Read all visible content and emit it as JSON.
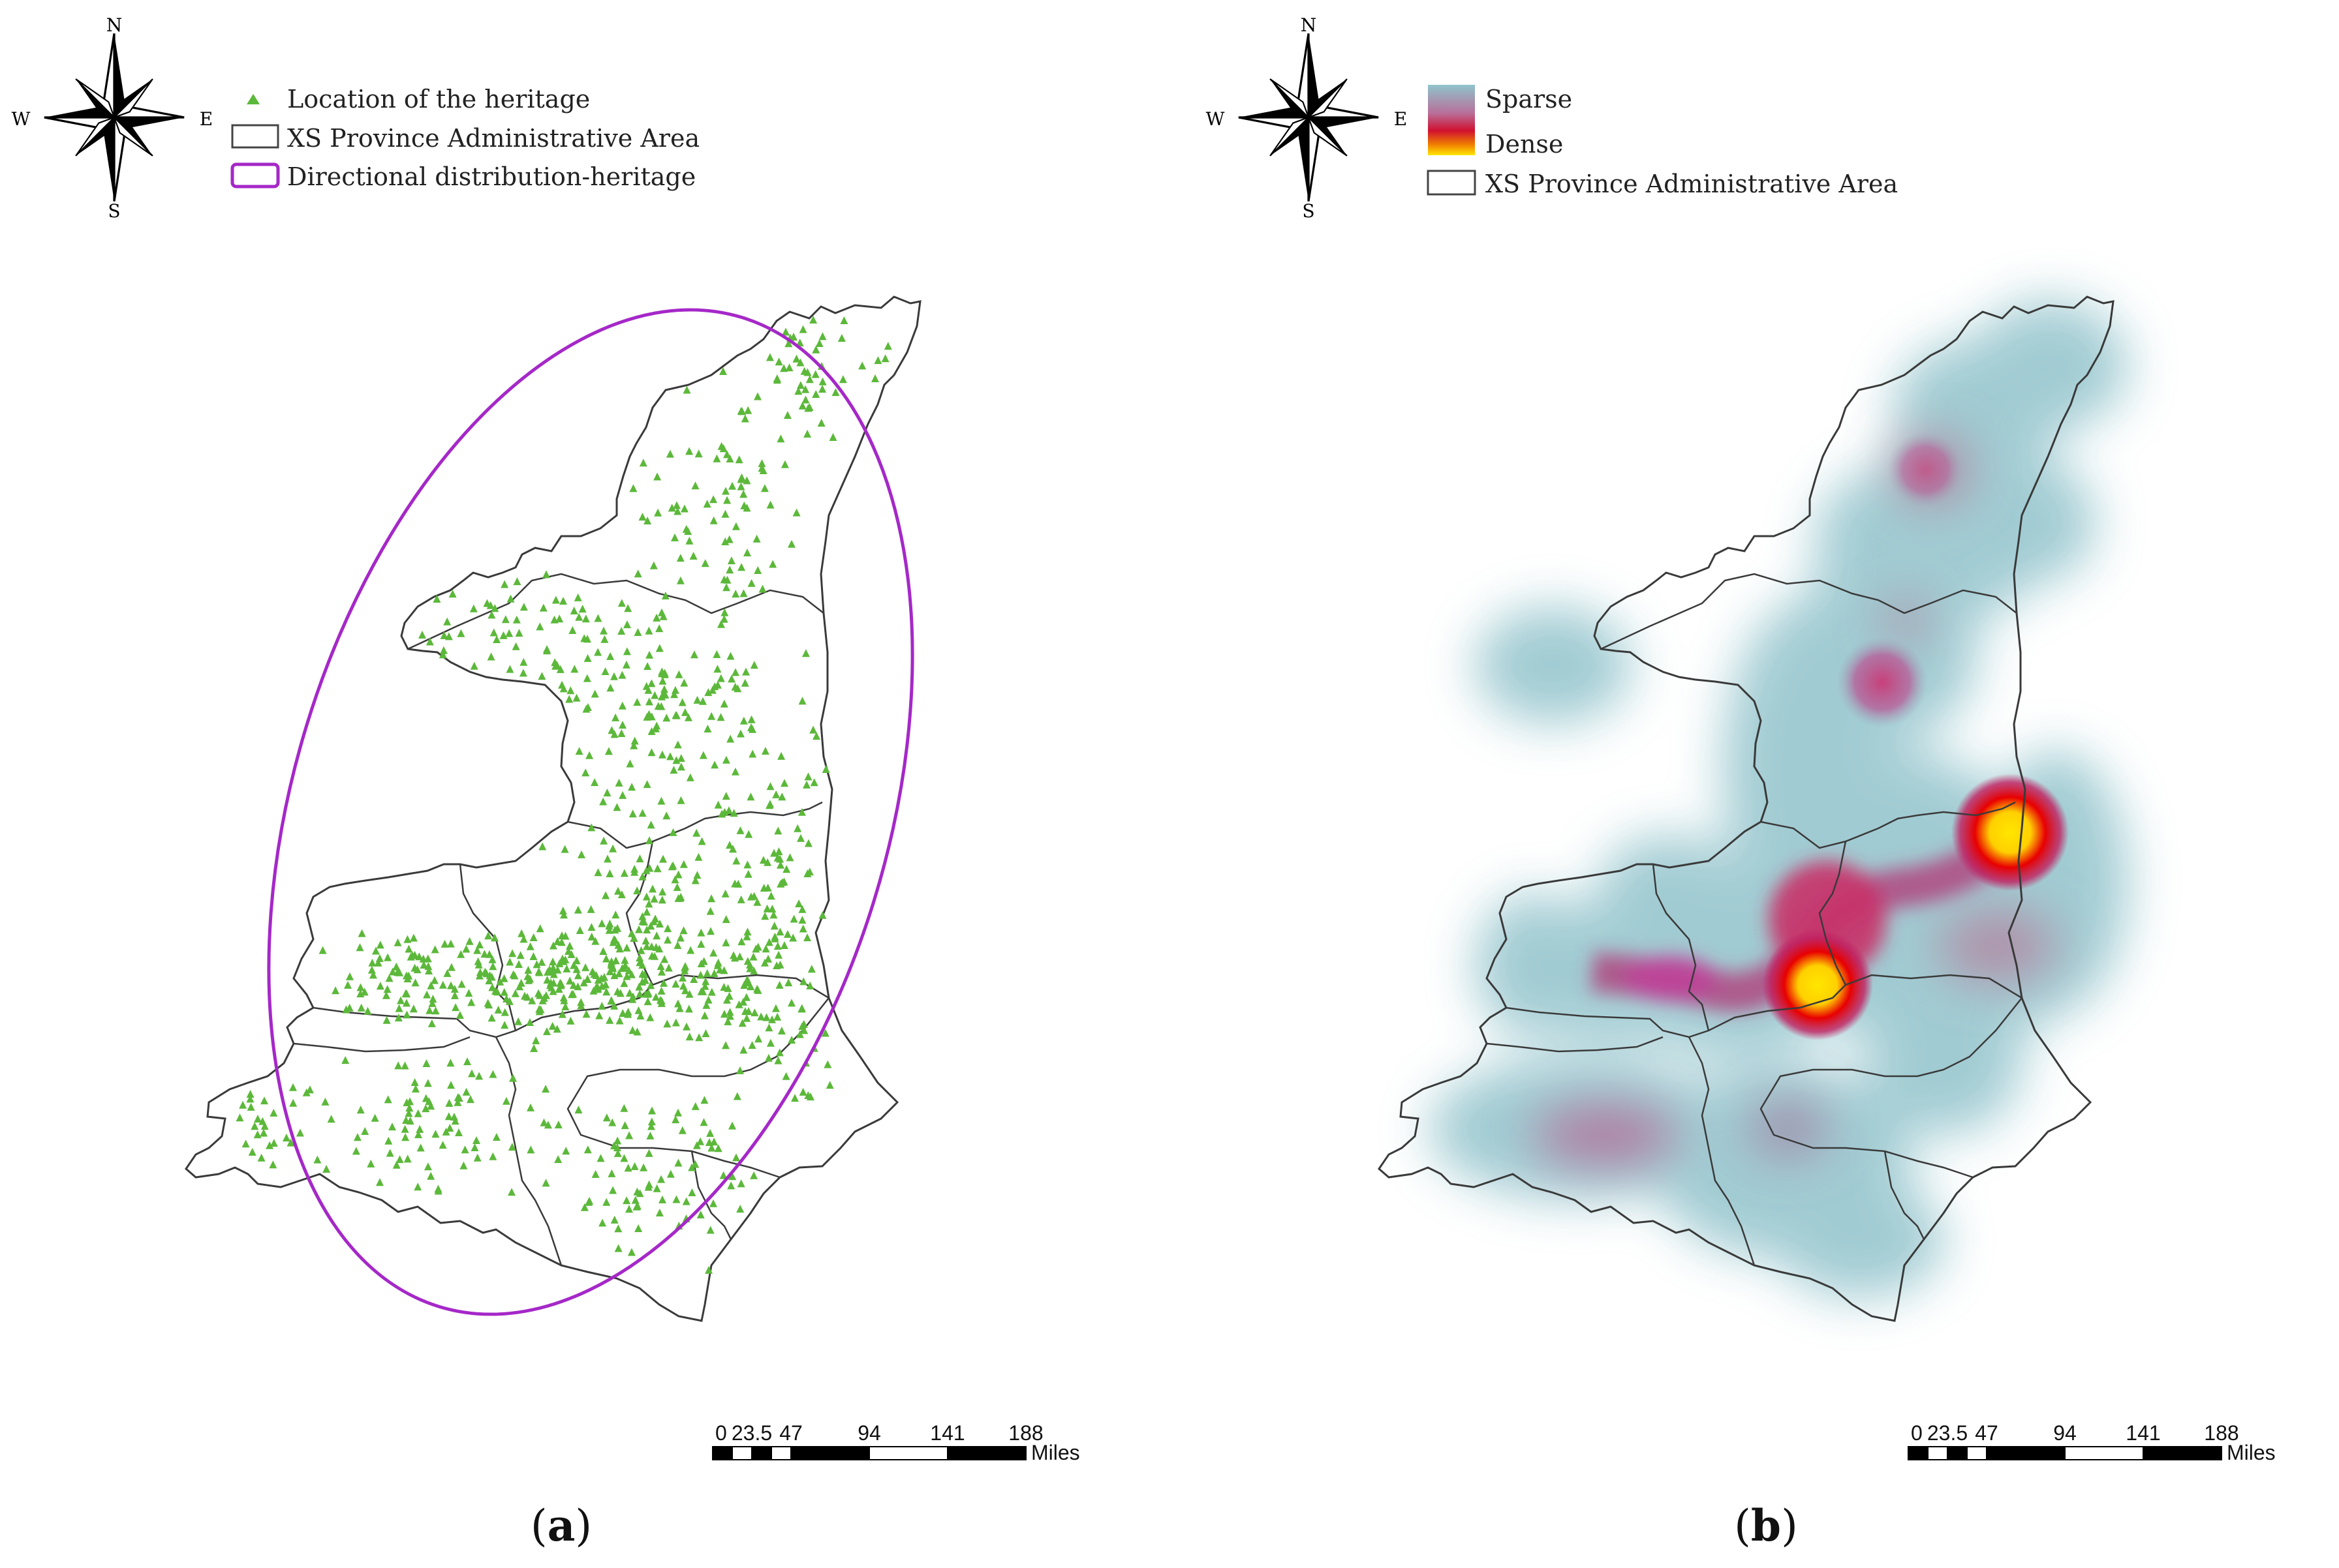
{
  "compass": {
    "north": "N",
    "south": "S",
    "east": "E",
    "west": "W"
  },
  "panel_a": {
    "caption_open": "(",
    "caption_letter": "a",
    "caption_close": ")",
    "legend": {
      "points": "Location of the heritage",
      "area": "XS Province Administrative Area",
      "ellipse": "Directional distribution-heritage"
    },
    "scalebar": {
      "ticks": [
        "0",
        "23.5",
        "47",
        "94",
        "141",
        "188"
      ],
      "unit": "Miles"
    }
  },
  "panel_b": {
    "caption_open": "(",
    "caption_letter": "b",
    "caption_close": ")",
    "legend": {
      "sparse": "Sparse",
      "dense": "Dense",
      "area": "XS Province Administrative Area"
    },
    "scalebar": {
      "ticks": [
        "0",
        "23.5",
        "47",
        "94",
        "141",
        "188"
      ],
      "unit": "Miles"
    }
  },
  "colors": {
    "points": "#5cb83a",
    "ellipse": "#a528c8",
    "boundary": "#3a3a3a",
    "sparse": "#8fc4cc",
    "mid": "#c0407a",
    "dense_red": "#e00000",
    "dense_yellow": "#ffe600"
  },
  "icons": [
    "compass-rose-icon",
    "triangle-point-icon",
    "polygon-swatch-icon",
    "ellipse-swatch-icon",
    "gradient-swatch-icon"
  ]
}
